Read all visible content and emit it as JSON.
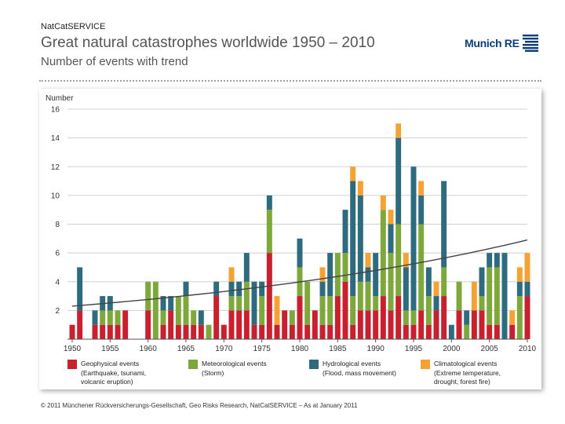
{
  "header": {
    "brand": "NatCatSERVICE",
    "title": "Great natural catastrophes worldwide 1950 – 2010",
    "subtitle": "Number of events with trend",
    "logo_text": "Munich RE"
  },
  "footer": "© 2011 Münchener Rückversicherungs-Gesellschaft, Geo Risks Research, NatCatSERVICE – As at January 2011",
  "colors": {
    "geophysical": "#c8202f",
    "meteorological": "#7ea83b",
    "hydrological": "#2f6b7e",
    "climatological": "#f4a233",
    "trend": "#444444",
    "grid": "#d0d0d0",
    "brand_blue": "#0a3d7a"
  },
  "chart_data": {
    "type": "bar",
    "stacked": true,
    "ylabel": "Number",
    "ylim": [
      0,
      16
    ],
    "yticks": [
      2,
      4,
      6,
      8,
      10,
      12,
      14,
      16
    ],
    "xtick_labels": [
      "1950",
      "1955",
      "1960",
      "1965",
      "1970",
      "1975",
      "1980",
      "1985",
      "1990",
      "1995",
      "2000",
      "2005",
      "2010"
    ],
    "categories": [
      "1950",
      "1951",
      "1952",
      "1953",
      "1954",
      "1955",
      "1956",
      "1957",
      "1958",
      "1959",
      "1960",
      "1961",
      "1962",
      "1963",
      "1964",
      "1965",
      "1966",
      "1967",
      "1968",
      "1969",
      "1970",
      "1971",
      "1972",
      "1973",
      "1974",
      "1975",
      "1976",
      "1977",
      "1978",
      "1979",
      "1980",
      "1981",
      "1982",
      "1983",
      "1984",
      "1985",
      "1986",
      "1987",
      "1988",
      "1989",
      "1990",
      "1991",
      "1992",
      "1993",
      "1994",
      "1995",
      "1996",
      "1997",
      "1998",
      "1999",
      "2000",
      "2001",
      "2002",
      "2003",
      "2004",
      "2005",
      "2006",
      "2007",
      "2008",
      "2009",
      "2010"
    ],
    "series": [
      {
        "name": "Geophysical events",
        "color_key": "geophysical",
        "description": "(Earthquake, tsunami, volcanic eruption)",
        "values": [
          1,
          2,
          0,
          1,
          1,
          1,
          1,
          2,
          0,
          0,
          2,
          0,
          1,
          2,
          1,
          1,
          1,
          1,
          0,
          3,
          1,
          2,
          2,
          2,
          1,
          1,
          6,
          1,
          2,
          1,
          3,
          1,
          2,
          1,
          1,
          3,
          4,
          1,
          2,
          2,
          2,
          3,
          2,
          3,
          1,
          1,
          2,
          1,
          2,
          3,
          0,
          2,
          0,
          2,
          2,
          1,
          1,
          0,
          1,
          0,
          3
        ]
      },
      {
        "name": "Meteorological events",
        "color_key": "meteorological",
        "description": "(Storm)",
        "values": [
          0,
          0,
          0,
          0,
          1,
          1,
          1,
          0,
          0,
          0,
          2,
          4,
          1,
          0,
          2,
          2,
          1,
          0,
          1,
          0,
          0,
          1,
          1,
          2,
          0,
          2,
          3,
          0,
          0,
          1,
          2,
          3,
          0,
          2,
          2,
          3,
          2,
          2,
          2,
          2,
          1,
          6,
          4,
          5,
          1,
          1,
          6,
          2,
          0,
          2,
          0,
          2,
          1,
          0,
          1,
          4,
          4,
          0,
          0,
          3,
          0
        ]
      },
      {
        "name": "Hydrological events",
        "color_key": "hydrological",
        "description": "(Flood, mass movement)",
        "values": [
          0,
          3,
          0,
          1,
          1,
          1,
          0,
          0,
          0,
          0,
          0,
          0,
          1,
          1,
          0,
          1,
          0,
          1,
          0,
          1,
          0,
          1,
          1,
          2,
          3,
          1,
          1,
          0,
          0,
          0,
          2,
          0,
          0,
          1,
          3,
          0,
          3,
          8,
          6,
          1,
          3,
          0,
          2,
          6,
          3,
          10,
          2,
          2,
          1,
          6,
          1,
          0,
          1,
          0,
          2,
          1,
          1,
          6,
          0,
          1,
          1
        ]
      },
      {
        "name": "Climatological events",
        "color_key": "climatological",
        "description": "(Extreme temperature, drought, forest fire)",
        "values": [
          0,
          0,
          0,
          0,
          0,
          0,
          0,
          0,
          0,
          0,
          0,
          0,
          0,
          0,
          0,
          0,
          0,
          0,
          0,
          0,
          0,
          1,
          0,
          0,
          0,
          0,
          0,
          2,
          0,
          0,
          0,
          0,
          0,
          1,
          0,
          0,
          0,
          1,
          1,
          1,
          0,
          1,
          1,
          1,
          1,
          0,
          1,
          0,
          1,
          0,
          0,
          0,
          0,
          2,
          0,
          0,
          0,
          0,
          1,
          1,
          2
        ]
      }
    ],
    "trend": {
      "name": "Trend",
      "start": 2.3,
      "end": 6.9
    }
  }
}
